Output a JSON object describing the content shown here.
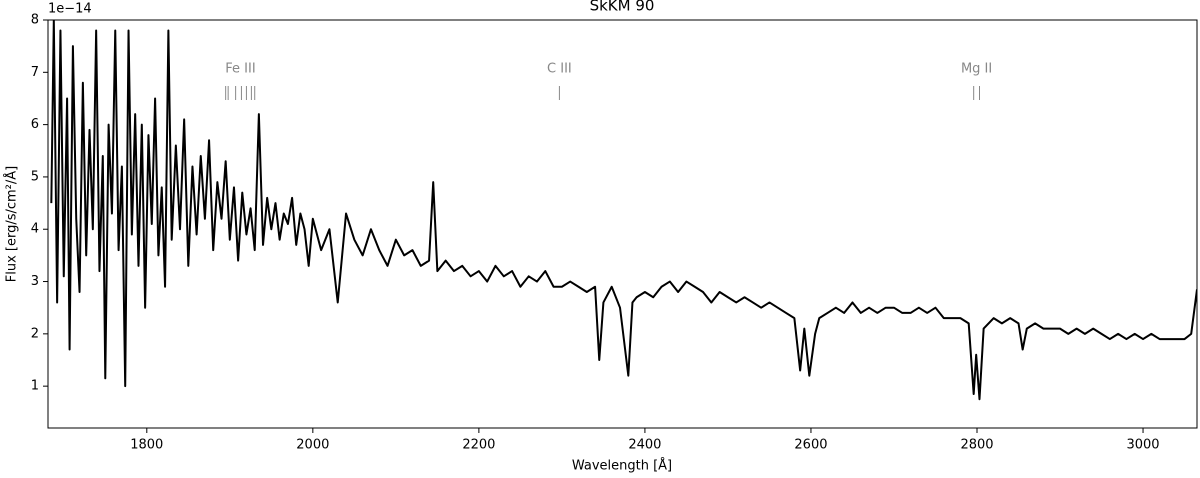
{
  "chart_data": {
    "type": "line",
    "title": "SkKM 90",
    "xlabel": "Wavelength [Å]",
    "ylabel": "Flux [erg/s/cm²/Å]",
    "y_offset_label": "1e−14",
    "color": "#000000",
    "annotation_color": "#888888",
    "xlim": [
      1681,
      3065
    ],
    "ylim": [
      0.2,
      8
    ],
    "xticks": [
      1800,
      2000,
      2200,
      2400,
      2600,
      2800,
      3000
    ],
    "yticks": [
      1,
      2,
      3,
      4,
      5,
      6,
      7,
      8
    ],
    "annotations": [
      {
        "label": "Fe III",
        "lines": [
          1895,
          1898,
          1907,
          1914,
          1920,
          1926,
          1930
        ]
      },
      {
        "label": "C III",
        "lines": [
          2297
        ]
      },
      {
        "label": "Mg II",
        "lines": [
          2796,
          2803
        ]
      }
    ],
    "x": [
      1685,
      1688,
      1692,
      1696,
      1700,
      1704,
      1707,
      1711,
      1715,
      1719,
      1723,
      1727,
      1731,
      1735,
      1739,
      1743,
      1747,
      1750,
      1754,
      1758,
      1762,
      1766,
      1770,
      1774,
      1778,
      1782,
      1786,
      1790,
      1794,
      1798,
      1802,
      1806,
      1810,
      1814,
      1818,
      1822,
      1826,
      1830,
      1835,
      1840,
      1845,
      1850,
      1855,
      1860,
      1865,
      1870,
      1875,
      1880,
      1885,
      1890,
      1895,
      1900,
      1905,
      1910,
      1915,
      1920,
      1925,
      1930,
      1935,
      1940,
      1945,
      1950,
      1955,
      1960,
      1965,
      1970,
      1975,
      1980,
      1985,
      1990,
      1995,
      2000,
      2010,
      2020,
      2030,
      2040,
      2050,
      2060,
      2070,
      2080,
      2090,
      2100,
      2110,
      2120,
      2130,
      2140,
      2145,
      2150,
      2160,
      2170,
      2180,
      2190,
      2200,
      2210,
      2220,
      2230,
      2240,
      2250,
      2260,
      2270,
      2280,
      2290,
      2300,
      2310,
      2320,
      2330,
      2340,
      2345,
      2350,
      2360,
      2370,
      2380,
      2385,
      2390,
      2400,
      2410,
      2420,
      2430,
      2440,
      2450,
      2460,
      2470,
      2480,
      2490,
      2500,
      2510,
      2520,
      2530,
      2540,
      2550,
      2560,
      2570,
      2580,
      2587,
      2592,
      2598,
      2605,
      2610,
      2620,
      2630,
      2640,
      2650,
      2660,
      2670,
      2680,
      2690,
      2700,
      2710,
      2720,
      2730,
      2740,
      2750,
      2760,
      2770,
      2780,
      2790,
      2796,
      2799,
      2803,
      2808,
      2820,
      2830,
      2840,
      2850,
      2855,
      2860,
      2870,
      2880,
      2890,
      2900,
      2910,
      2920,
      2930,
      2940,
      2950,
      2960,
      2970,
      2980,
      2990,
      3000,
      3010,
      3020,
      3030,
      3040,
      3050,
      3058,
      3065
    ],
    "values": [
      4.5,
      8,
      2.6,
      7.8,
      3.1,
      6.5,
      1.7,
      7.5,
      4.2,
      2.8,
      6.8,
      3.5,
      5.9,
      4.0,
      7.8,
      3.2,
      5.4,
      1.15,
      6.0,
      4.3,
      7.8,
      3.6,
      5.2,
      1.0,
      7.8,
      3.9,
      6.2,
      3.3,
      6.0,
      2.5,
      5.8,
      4.1,
      6.5,
      3.5,
      4.8,
      2.9,
      7.8,
      3.8,
      5.6,
      4.0,
      6.1,
      3.3,
      5.2,
      3.9,
      5.4,
      4.2,
      5.7,
      3.6,
      4.9,
      4.2,
      5.3,
      3.8,
      4.8,
      3.4,
      4.7,
      3.9,
      4.4,
      3.6,
      6.2,
      3.7,
      4.6,
      4.0,
      4.5,
      3.8,
      4.3,
      4.1,
      4.6,
      3.7,
      4.3,
      4.0,
      3.3,
      4.2,
      3.6,
      4.0,
      2.6,
      4.3,
      3.8,
      3.5,
      4.0,
      3.6,
      3.3,
      3.8,
      3.5,
      3.6,
      3.3,
      3.4,
      4.9,
      3.2,
      3.4,
      3.2,
      3.3,
      3.1,
      3.2,
      3.0,
      3.3,
      3.1,
      3.2,
      2.9,
      3.1,
      3.0,
      3.2,
      2.9,
      2.9,
      3.0,
      2.9,
      2.8,
      2.9,
      1.5,
      2.6,
      2.9,
      2.5,
      1.2,
      2.6,
      2.7,
      2.8,
      2.7,
      2.9,
      3.0,
      2.8,
      3.0,
      2.9,
      2.8,
      2.6,
      2.8,
      2.7,
      2.6,
      2.7,
      2.6,
      2.5,
      2.6,
      2.5,
      2.4,
      2.3,
      1.3,
      2.1,
      1.2,
      2.0,
      2.3,
      2.4,
      2.5,
      2.4,
      2.6,
      2.4,
      2.5,
      2.4,
      2.5,
      2.5,
      2.4,
      2.4,
      2.5,
      2.4,
      2.5,
      2.3,
      2.3,
      2.3,
      2.2,
      0.85,
      1.6,
      0.75,
      2.1,
      2.3,
      2.2,
      2.3,
      2.2,
      1.7,
      2.1,
      2.2,
      2.1,
      2.1,
      2.1,
      2.0,
      2.1,
      2.0,
      2.1,
      2.0,
      1.9,
      2.0,
      1.9,
      2.0,
      1.9,
      2.0,
      1.9,
      1.9,
      1.9,
      1.9,
      2.0,
      2.85
    ]
  }
}
